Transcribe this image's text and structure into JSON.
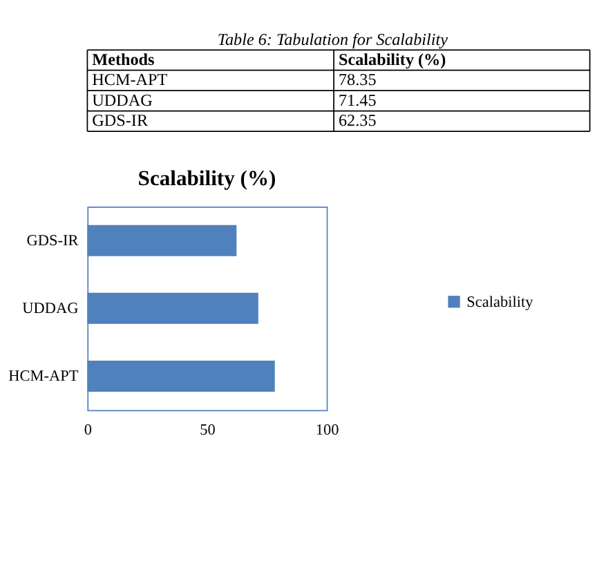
{
  "chart_data": [
    {
      "type": "other",
      "title": "Table 6: Tabulation for Scalability",
      "annotations": [
        "Methods",
        "Scalability (%)",
        "HCM-APT",
        "78.35",
        "UDDAG",
        "71.45",
        "GDS-IR",
        "62.35"
      ]
    },
    {
      "type": "bar",
      "orientation": "horizontal",
      "title": "Scalability (%)",
      "categories": [
        "GDS-IR",
        "UDDAG",
        "HCM-APT"
      ],
      "series": [
        {
          "name": "Scalability",
          "color": "#4f81bd",
          "values": [
            62.35,
            71.45,
            78.35
          ]
        }
      ],
      "xlim": [
        0,
        100
      ],
      "xticks": [
        0,
        50,
        100
      ],
      "grid": false,
      "legend": "right"
    }
  ]
}
